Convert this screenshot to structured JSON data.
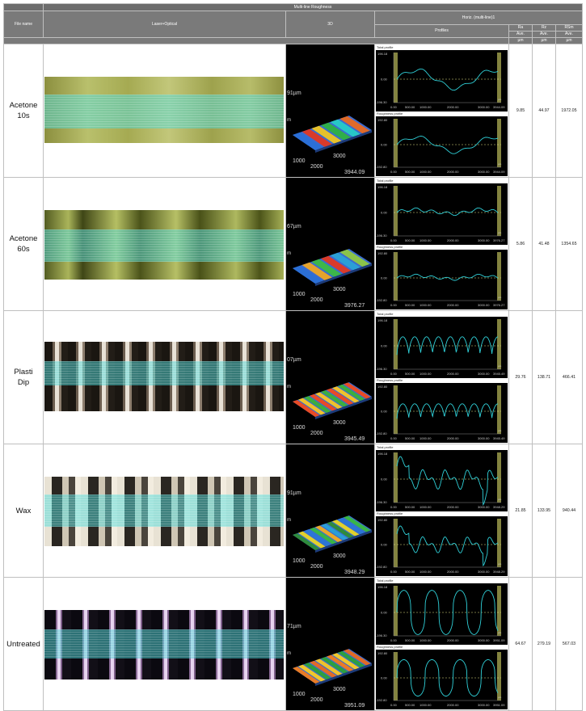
{
  "header": {
    "group_title": "Multi-line Roughness",
    "file_name": "File name",
    "laser_optical": "Laser+Optical",
    "threed": "3D",
    "horiz": "Horiz. (multi-line)1",
    "profiles": "Profiles",
    "ra": "Ra",
    "rz": "Rz",
    "rsm": "RSm",
    "ave": "Ave.",
    "unit": "µm"
  },
  "profile_labels": {
    "total": "Total profile",
    "roughness": "Roughness profile",
    "y_top": "196.18",
    "y_mid": "0.00",
    "y_bot": "-196.30",
    "y2_top": "192.80",
    "y2_mid": "0.00",
    "y2_bot": "-192.80",
    "x_ticks": [
      "0.00",
      "500.00",
      "1000.00",
      "2000.00",
      "3000.00"
    ],
    "unit": "µm"
  },
  "rows": [
    {
      "name_line1": "Acetone",
      "name_line2": "10s",
      "z_label": "91µm",
      "len_label": "3944.09",
      "axis_1000": "1000",
      "axis_2000": "2000",
      "axis_3000": "3000",
      "ra": "9.85",
      "rz": "44.97",
      "rsm": "1972.05",
      "x_end": "3944.09"
    },
    {
      "name_line1": "Acetone",
      "name_line2": "60s",
      "z_label": "67µm",
      "len_label": "3976.27",
      "axis_1000": "1000",
      "axis_2000": "2000",
      "axis_3000": "3000",
      "ra": "5.86",
      "rz": "41.48",
      "rsm": "1354.65",
      "x_end": "3976.27"
    },
    {
      "name_line1": "Plasti",
      "name_line2": "Dip",
      "z_label": "07µm",
      "len_label": "3945.49",
      "axis_1000": "1000",
      "axis_2000": "2000",
      "axis_3000": "3000",
      "ra": "29.76",
      "rz": "138.71",
      "rsm": "466.41",
      "x_end": "3945.49"
    },
    {
      "name_line1": "Wax",
      "name_line2": "",
      "z_label": "91µm",
      "len_label": "3948.29",
      "axis_1000": "1000",
      "axis_2000": "2000",
      "axis_3000": "3000",
      "ra": "21.85",
      "rz": "133.95",
      "rsm": "940.44",
      "x_end": "3948.29"
    },
    {
      "name_line1": "Untreated",
      "name_line2": "",
      "z_label": "71µm",
      "len_label": "3951.09",
      "axis_1000": "1000",
      "axis_2000": "2000",
      "axis_3000": "3000",
      "ra": "64.67",
      "rz": "279.19",
      "rsm": "567.03",
      "x_end": "3951.09"
    }
  ]
}
